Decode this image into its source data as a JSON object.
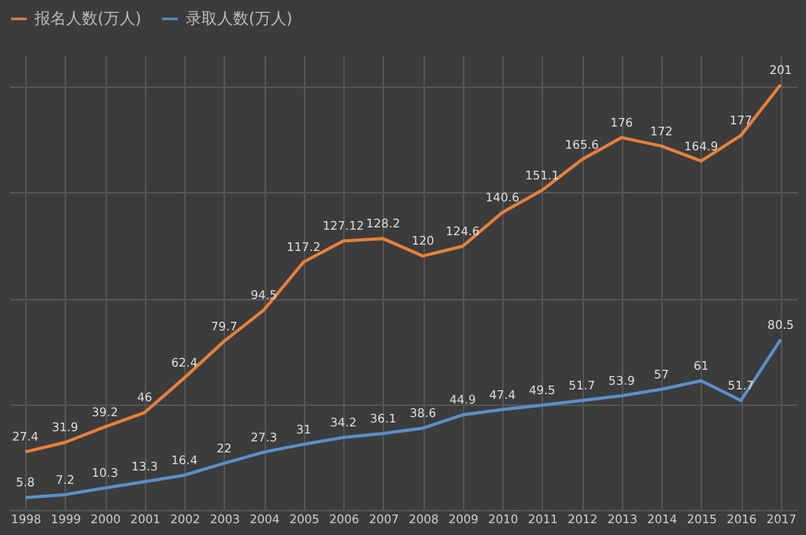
{
  "chart_data": {
    "type": "line",
    "categories": [
      "1998",
      "1999",
      "2000",
      "2001",
      "2002",
      "2003",
      "2004",
      "2005",
      "2006",
      "2007",
      "2008",
      "2009",
      "2010",
      "2011",
      "2012",
      "2013",
      "2014",
      "2015",
      "2016",
      "2017"
    ],
    "series": [
      {
        "name": "报名人数(万人)",
        "color": "#e8803a",
        "values": [
          27.4,
          31.9,
          39.2,
          46,
          62.4,
          79.7,
          94.5,
          117.2,
          127.12,
          128.2,
          120,
          124.6,
          140.6,
          151.1,
          165.6,
          176,
          172,
          164.9,
          177,
          201
        ]
      },
      {
        "name": "录取人数(万人)",
        "color": "#5b8fc9",
        "values": [
          5.8,
          7.2,
          10.3,
          13.3,
          16.4,
          22,
          27.3,
          31,
          34.2,
          36.1,
          38.6,
          44.9,
          47.4,
          49.5,
          51.7,
          53.9,
          57,
          61,
          51.7,
          80.5
        ]
      }
    ],
    "ylim": [
      0,
      215
    ],
    "yticks": [
      {
        "value": 0,
        "label": null
      },
      {
        "value": 50,
        "label": null
      },
      {
        "value": 100,
        "label": null
      },
      {
        "value": 150,
        "label": null
      },
      {
        "value": 200,
        "label": null
      }
    ],
    "tick_labels": "x",
    "grid": true,
    "legend": "top",
    "data_labels": true,
    "marker": "none",
    "line_style": "solid"
  }
}
